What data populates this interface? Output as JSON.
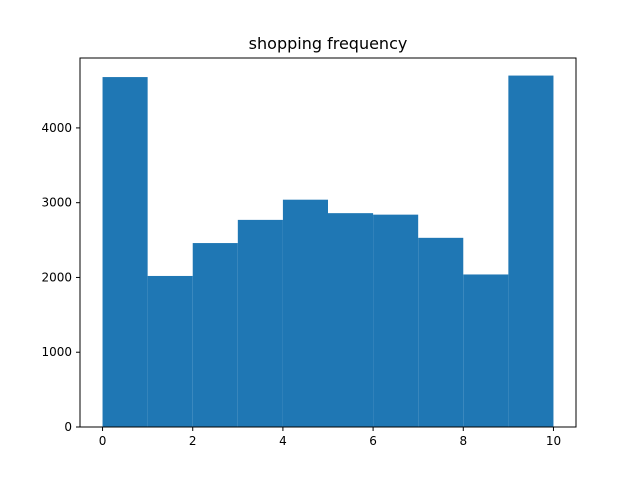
{
  "chart_data": {
    "type": "bar",
    "title": "shopping frequency",
    "xlabel": "",
    "ylabel": "",
    "bin_edges": [
      0,
      1,
      2,
      3,
      4,
      5,
      6,
      7,
      8,
      9,
      10
    ],
    "values": [
      4680,
      2020,
      2460,
      2770,
      3040,
      2860,
      2840,
      2530,
      2040,
      4700
    ],
    "xlim": [
      -0.5,
      10.5
    ],
    "ylim": [
      0,
      4935
    ],
    "xticks": [
      0,
      2,
      4,
      6,
      8,
      10
    ],
    "yticks": [
      0,
      1000,
      2000,
      3000,
      4000
    ],
    "grid": false,
    "bar_color": "#1f77b4"
  }
}
